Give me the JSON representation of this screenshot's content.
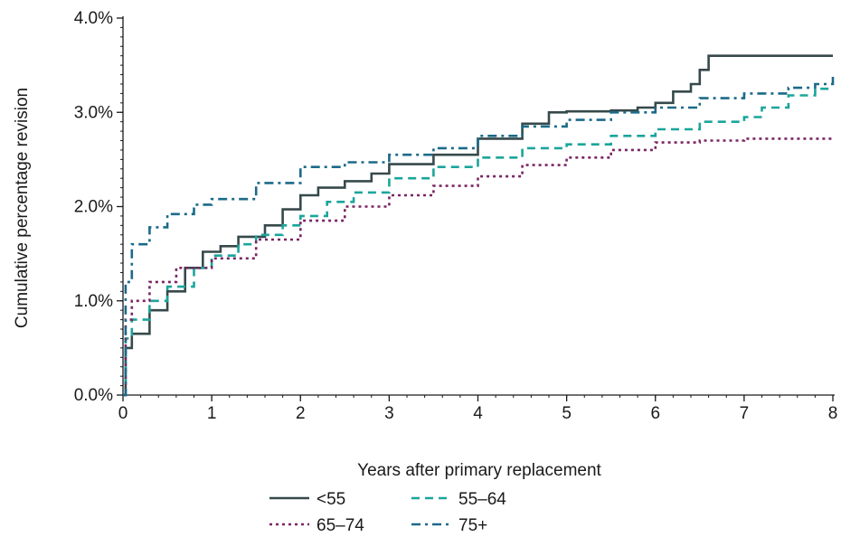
{
  "chart_data": {
    "type": "line",
    "step": true,
    "xlabel": "Years after primary replacement",
    "ylabel": "Cumulative percentage revision",
    "xlim": [
      0,
      8
    ],
    "ylim": [
      0,
      4
    ],
    "x_ticks": [
      0,
      1,
      2,
      3,
      4,
      5,
      6,
      7,
      8
    ],
    "x_tick_labels": [
      "0",
      "1",
      "2",
      "3",
      "4",
      "5",
      "6",
      "7",
      "8"
    ],
    "y_ticks": [
      0,
      1,
      2,
      3,
      4
    ],
    "y_tick_labels": [
      "0.0%",
      "1.0%",
      "2.0%",
      "3.0%",
      "4.0%"
    ],
    "grid": false,
    "legend_position": "bottom",
    "series": [
      {
        "name": "<55",
        "color": "#37494b",
        "dash": "solid",
        "points": [
          [
            0,
            0
          ],
          [
            0.03,
            0.5
          ],
          [
            0.1,
            0.65
          ],
          [
            0.3,
            0.9
          ],
          [
            0.5,
            1.1
          ],
          [
            0.7,
            1.35
          ],
          [
            0.9,
            1.52
          ],
          [
            1.1,
            1.58
          ],
          [
            1.3,
            1.68
          ],
          [
            1.6,
            1.8
          ],
          [
            1.8,
            1.97
          ],
          [
            2.0,
            2.12
          ],
          [
            2.2,
            2.2
          ],
          [
            2.5,
            2.27
          ],
          [
            2.8,
            2.35
          ],
          [
            3.0,
            2.45
          ],
          [
            3.5,
            2.55
          ],
          [
            4.0,
            2.72
          ],
          [
            4.5,
            2.88
          ],
          [
            4.8,
            3.0
          ],
          [
            5.0,
            3.01
          ],
          [
            5.5,
            3.02
          ],
          [
            5.8,
            3.05
          ],
          [
            6.0,
            3.1
          ],
          [
            6.2,
            3.22
          ],
          [
            6.4,
            3.3
          ],
          [
            6.5,
            3.45
          ],
          [
            6.6,
            3.6
          ],
          [
            8.0,
            3.6
          ]
        ]
      },
      {
        "name": "55–64",
        "color": "#1aa59b",
        "dash": "dash",
        "points": [
          [
            0,
            0
          ],
          [
            0.03,
            0.6
          ],
          [
            0.1,
            0.8
          ],
          [
            0.3,
            1.0
          ],
          [
            0.5,
            1.15
          ],
          [
            0.8,
            1.35
          ],
          [
            1.0,
            1.48
          ],
          [
            1.3,
            1.6
          ],
          [
            1.5,
            1.7
          ],
          [
            1.8,
            1.8
          ],
          [
            2.0,
            1.9
          ],
          [
            2.3,
            2.05
          ],
          [
            2.6,
            2.15
          ],
          [
            3.0,
            2.3
          ],
          [
            3.5,
            2.42
          ],
          [
            4.0,
            2.52
          ],
          [
            4.5,
            2.62
          ],
          [
            5.0,
            2.66
          ],
          [
            5.5,
            2.75
          ],
          [
            6.0,
            2.82
          ],
          [
            6.5,
            2.9
          ],
          [
            7.0,
            2.95
          ],
          [
            7.2,
            3.05
          ],
          [
            7.5,
            3.18
          ],
          [
            7.8,
            3.25
          ],
          [
            8.0,
            3.26
          ]
        ]
      },
      {
        "name": "65–74",
        "color": "#7a2564",
        "dash": "dot",
        "points": [
          [
            0,
            0
          ],
          [
            0.03,
            0.8
          ],
          [
            0.1,
            1.0
          ],
          [
            0.3,
            1.2
          ],
          [
            0.6,
            1.35
          ],
          [
            1.0,
            1.45
          ],
          [
            1.5,
            1.65
          ],
          [
            2.0,
            1.85
          ],
          [
            2.5,
            2.0
          ],
          [
            3.0,
            2.12
          ],
          [
            3.5,
            2.22
          ],
          [
            4.0,
            2.32
          ],
          [
            4.5,
            2.44
          ],
          [
            5.0,
            2.52
          ],
          [
            5.5,
            2.6
          ],
          [
            6.0,
            2.68
          ],
          [
            6.5,
            2.7
          ],
          [
            7.0,
            2.72
          ],
          [
            8.0,
            2.74
          ]
        ]
      },
      {
        "name": "75+",
        "color": "#1b6a89",
        "dash": "dashdot",
        "points": [
          [
            0,
            0
          ],
          [
            0.03,
            1.2
          ],
          [
            0.1,
            1.6
          ],
          [
            0.3,
            1.78
          ],
          [
            0.5,
            1.92
          ],
          [
            0.8,
            2.02
          ],
          [
            1.0,
            2.08
          ],
          [
            1.5,
            2.25
          ],
          [
            2.0,
            2.42
          ],
          [
            2.5,
            2.47
          ],
          [
            3.0,
            2.55
          ],
          [
            3.5,
            2.62
          ],
          [
            4.0,
            2.75
          ],
          [
            4.5,
            2.85
          ],
          [
            5.0,
            2.92
          ],
          [
            5.5,
            3.0
          ],
          [
            6.0,
            3.05
          ],
          [
            6.5,
            3.15
          ],
          [
            7.0,
            3.2
          ],
          [
            7.5,
            3.26
          ],
          [
            7.8,
            3.3
          ],
          [
            8.0,
            3.38
          ]
        ]
      }
    ]
  }
}
